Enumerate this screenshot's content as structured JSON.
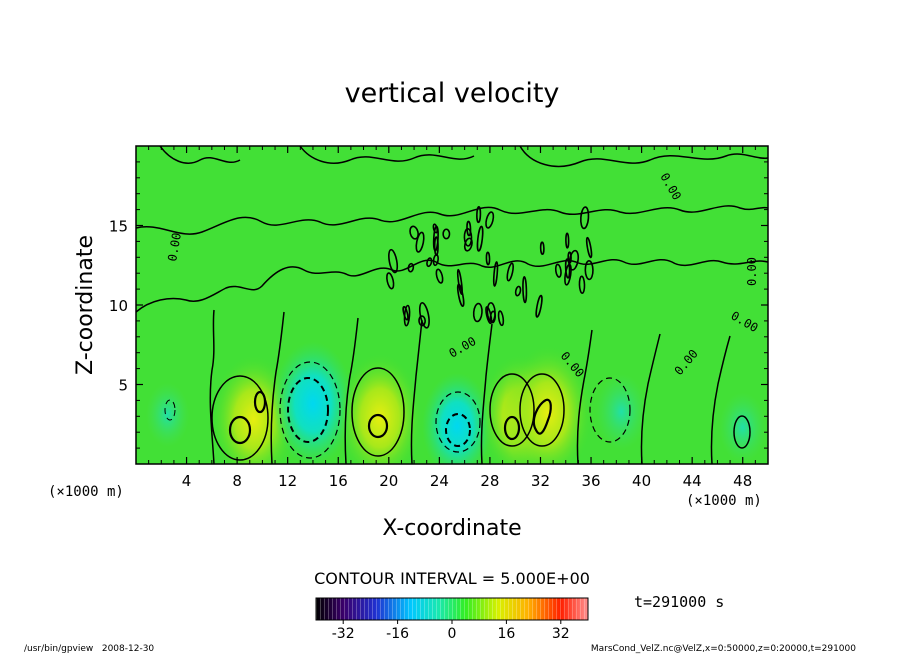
{
  "chart_data": {
    "type": "heatmap",
    "title": "vertical velocity",
    "xlabel": "X-coordinate",
    "ylabel": "Z-coordinate",
    "x_unit": "(×1000 m)",
    "y_unit": "(×1000 m)",
    "xlim": [
      0,
      50
    ],
    "ylim": [
      0,
      20
    ],
    "x_ticks": [
      4,
      8,
      12,
      16,
      20,
      24,
      28,
      32,
      36,
      40,
      44,
      48
    ],
    "y_ticks": [
      5,
      10,
      15
    ],
    "contour_interval": "CONTOUR INTERVAL = 5.000E+00",
    "contour_label": "0.00",
    "time": "t=291000 s",
    "colorbar": {
      "range": [
        -40,
        40
      ],
      "ticks": [
        -32,
        -16,
        0,
        16,
        32
      ],
      "colors": [
        "#000000",
        "#3a006a",
        "#2030d0",
        "#00c8ff",
        "#19e8b0",
        "#33ee22",
        "#d8f000",
        "#ffb000",
        "#ff2000",
        "#ff9090"
      ]
    },
    "features": [
      {
        "x": 9.3,
        "z": 2.8,
        "value": 15
      },
      {
        "x": 14.0,
        "z": 3.8,
        "value": -14
      },
      {
        "x": 19.3,
        "z": 2.9,
        "value": 15
      },
      {
        "x": 25.4,
        "z": 2.4,
        "value": -11
      },
      {
        "x": 30.4,
        "z": 3.0,
        "value": 14
      },
      {
        "x": 32.6,
        "z": 3.2,
        "value": 16
      },
      {
        "x": 38.4,
        "z": 3.3,
        "value": -6
      },
      {
        "x": 48.0,
        "z": 2.3,
        "value": -5
      },
      {
        "x": 2.5,
        "z": 3.1,
        "value": -4
      }
    ]
  },
  "footer": {
    "left": "/usr/bin/gpview   2008-12-30",
    "right": "MarsCond_VelZ.nc@VelZ,x=0:50000,z=0:20000,t=291000"
  }
}
